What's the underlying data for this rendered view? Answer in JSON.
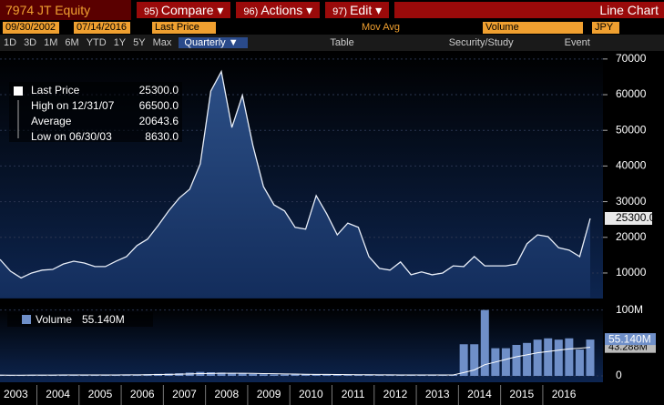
{
  "toolbar": {
    "ticker": "7974 JT Equity",
    "buttons": [
      "95)",
      "Compare",
      "96)",
      "Actions",
      "97)",
      "Edit"
    ],
    "chart_kind": "Line Chart"
  },
  "settings": {
    "start": "09/30/2002",
    "end": "07/14/2016",
    "field": "Last Price",
    "study": "Mov Avg",
    "lower": "Volume",
    "currency": "JPY"
  },
  "periods": [
    "1D",
    "3D",
    "1M",
    "6M",
    "YTD",
    "1Y",
    "5Y",
    "Max"
  ],
  "frequency": "Quarterly",
  "tools": [
    "Table",
    "Security/Study",
    "Event"
  ],
  "chart_data": {
    "type": "line",
    "xticks": [
      "2003",
      "2004",
      "2005",
      "2006",
      "2007",
      "2008",
      "2009",
      "2010",
      "2011",
      "2012",
      "2013",
      "2014",
      "2015",
      "2016"
    ],
    "legend": [
      {
        "name": "Last Price",
        "value": "25300.0"
      },
      {
        "name": "High on 12/31/07",
        "value": "66500.0"
      },
      {
        "name": "Average",
        "value": "20643.6"
      },
      {
        "name": "Low on 06/30/03",
        "value": "8630.0"
      }
    ],
    "ylim": [
      3100,
      72000
    ],
    "yticks": [
      10000,
      20000,
      30000,
      40000,
      50000,
      60000,
      70000
    ],
    "series": [
      {
        "name": "Last Price",
        "color": "#e8eef8",
        "value_labels_last": "25300.0",
        "values": [
          13800,
          10500,
          8630,
          10000,
          10800,
          11000,
          12500,
          13300,
          12800,
          11800,
          11800,
          13300,
          14600,
          17700,
          19500,
          23300,
          27400,
          31000,
          33500,
          40600,
          61000,
          66500,
          50800,
          59800,
          45700,
          34200,
          29100,
          27400,
          22800,
          22300,
          31700,
          26600,
          20700,
          24000,
          22800,
          14600,
          11300,
          10800,
          13100,
          9500,
          10300,
          9500,
          10000,
          12000,
          11800,
          14600,
          12000,
          12000,
          12000,
          12500,
          18200,
          20700,
          20200,
          17100,
          16400,
          14600,
          25300
        ]
      }
    ],
    "volume": {
      "name": "Volume",
      "label": "55.140M",
      "color": "#6f8fc8",
      "ylim": [
        0,
        105
      ],
      "yticks": [
        0,
        {
          "value": 100,
          "label": "100M"
        }
      ],
      "values": [
        1.2,
        1.0,
        1.1,
        1.3,
        1.2,
        1.4,
        1.5,
        1.3,
        1.2,
        1.3,
        1.4,
        1.6,
        1.8,
        2.0,
        2.5,
        3.0,
        3.5,
        4.0,
        5.0,
        6.0,
        5.5,
        5.0,
        4.5,
        4.0,
        3.0,
        2.5,
        2.2,
        2.0,
        2.5,
        2.3,
        2.0,
        1.8,
        1.6,
        1.7,
        1.5,
        1.4,
        1.3,
        1.2,
        1.2,
        1.1,
        1.2,
        1.3,
        1.4,
        1.6,
        48,
        48,
        100,
        42,
        42,
        47,
        50,
        55,
        57,
        55,
        57,
        40,
        55.14
      ],
      "value_label_last": "55.140M",
      "avg_values": [
        1.2,
        1.1,
        1.1,
        1.2,
        1.2,
        1.2,
        1.3,
        1.3,
        1.3,
        1.3,
        1.3,
        1.4,
        1.5,
        1.6,
        1.8,
        2.0,
        2.3,
        2.6,
        3.0,
        3.4,
        3.7,
        3.9,
        4.0,
        4.0,
        3.8,
        3.5,
        3.2,
        2.9,
        2.7,
        2.5,
        2.3,
        2.2,
        2.0,
        1.9,
        1.8,
        1.7,
        1.6,
        1.5,
        1.4,
        1.3,
        1.3,
        1.3,
        1.3,
        1.4,
        5,
        9,
        17,
        21,
        25,
        29,
        32,
        35,
        37,
        39,
        41,
        42,
        43.288
      ],
      "avg_label_last": "43.288M"
    }
  }
}
